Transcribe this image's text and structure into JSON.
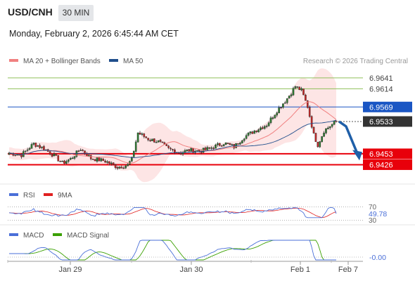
{
  "header": {
    "symbol": "USD/CNH",
    "interval": "30 MIN",
    "datetime": "Monday, February 2, 2026 6:45:44 AM CET"
  },
  "legend": {
    "ma20": "MA 20 + Bollinger Bands",
    "ma50": "MA 50",
    "rsi": "RSI",
    "rsi_ma": "9MA",
    "macd": "MACD",
    "macd_signal": "MACD Signal"
  },
  "copyright": "Research © 2026 Trading Central",
  "colors": {
    "candle_up": "#2e7d32",
    "candle_down": "#c62828",
    "ma20": "#f08080",
    "ma50": "#1f4e8c",
    "band_fill": "#fde0e0",
    "resistance_green": "#8fbf5a",
    "pivot_blue": "#1a56c4",
    "support_red": "#e8000b",
    "current_price_tag": "#333333",
    "arrow": "#1f5fa8",
    "rsi_line": "#4a6fd8",
    "rsi_ma": "#e02020",
    "macd_line": "#4a6fd8",
    "macd_signal": "#3aa000"
  },
  "chart_data": [
    {
      "type": "candlestick",
      "panel": "price",
      "ylim": [
        6.9385,
        6.966
      ],
      "x_ticks": [
        "Jan 29",
        "Jan 30",
        "Feb 1",
        "Feb 7"
      ],
      "levels": [
        {
          "label": "6.9641",
          "value": 6.9641,
          "kind": "resistance"
        },
        {
          "label": "6.9614",
          "value": 6.9614,
          "kind": "resistance"
        },
        {
          "label": "6.9569",
          "value": 6.9569,
          "kind": "pivot"
        },
        {
          "label": "6.9533",
          "value": 6.9533,
          "kind": "current"
        },
        {
          "label": "6.9453",
          "value": 6.9453,
          "kind": "support"
        },
        {
          "label": "6.9426",
          "value": 6.9426,
          "kind": "support"
        }
      ],
      "current_price": 6.9533,
      "projection": {
        "from": 6.9533,
        "to": 6.944,
        "direction": "down"
      },
      "grid": false
    },
    {
      "type": "line",
      "panel": "rsi",
      "ylim": [
        25,
        75
      ],
      "levels": [
        {
          "label": "70",
          "value": 70
        },
        {
          "label": "30",
          "value": 30
        }
      ],
      "current_label": "49.78",
      "current": 49.78
    },
    {
      "type": "line",
      "panel": "macd",
      "current_label": "-0.00",
      "current": -0.0
    }
  ]
}
